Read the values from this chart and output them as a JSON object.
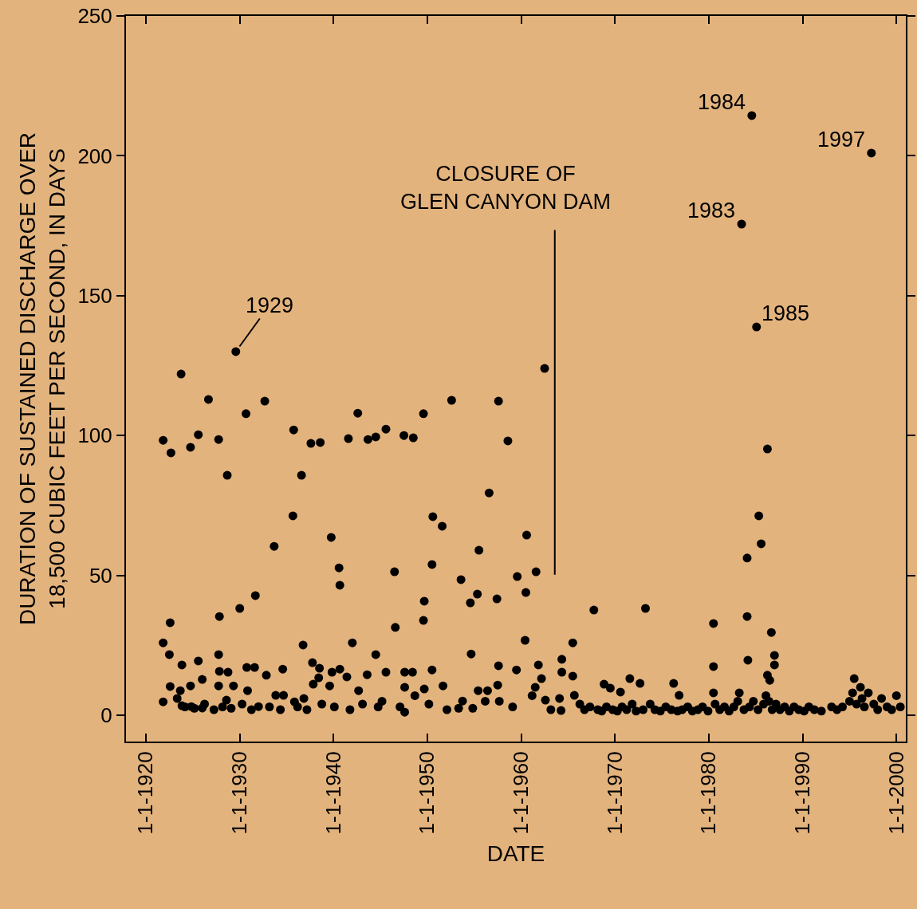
{
  "chart_data": {
    "type": "scatter",
    "xlabel": "DATE",
    "ylabel": "DURATION OF SUSTAINED DISCHARGE OVER\n18,500 CUBIC FEET PER SECOND, IN DAYS",
    "xlim": [
      "1917-11-15",
      "2001-01-01"
    ],
    "ylim": [
      -9.4,
      250
    ],
    "xticks": [
      {
        "value": "1920-01-01",
        "label": "1-1-1920"
      },
      {
        "value": "1930-01-01",
        "label": "1-1-1930"
      },
      {
        "value": "1940-01-01",
        "label": "1-1-1940"
      },
      {
        "value": "1950-01-01",
        "label": "1-1-1950"
      },
      {
        "value": "1960-01-01",
        "label": "1-1-1960"
      },
      {
        "value": "1970-01-01",
        "label": "1-1-1970"
      },
      {
        "value": "1980-01-01",
        "label": "1-1-1980"
      },
      {
        "value": "1990-01-01",
        "label": "1-1-1990"
      },
      {
        "value": "2000-01-01",
        "label": "1-1-2000"
      }
    ],
    "yticks": [
      0,
      50,
      100,
      150,
      200,
      250
    ],
    "grid": false,
    "marker": "circle",
    "color": "#000000",
    "x": [
      "1921-11",
      "1921-11",
      "1921-11",
      "1922-07",
      "1922-09",
      "1922-08",
      "1922-08",
      "1923-10",
      "1923-11",
      "1923-09",
      "1923-11",
      "1924-10",
      "1924-10",
      "1924-11",
      "1925-08",
      "1925-08",
      "1926-01",
      "1926-01",
      "1926-09",
      "1927-10",
      "1927-11",
      "1927-10",
      "1927-11",
      "1927-10",
      "1928-09",
      "1928-10",
      "1928-08",
      "1929-05",
      "1929-08",
      "1930-01",
      "1930-09",
      "1930-10",
      "1930-11",
      "1931-09",
      "1931-08",
      "1932-01",
      "1932-09",
      "1932-11",
      "1933-09",
      "1933-11",
      "1934-08",
      "1934-09",
      "1935-10",
      "1935-09",
      "1935-11",
      "1936-08",
      "1936-10",
      "1936-11",
      "1937-08",
      "1937-10",
      "1937-11",
      "1938-08",
      "1938-07",
      "1938-06",
      "1939-10",
      "1939-08",
      "1939-11",
      "1940-08",
      "1940-09",
      "1940-09",
      "1941-08",
      "1941-06",
      "1942-01",
      "1942-08",
      "1942-09",
      "1943-09",
      "1943-08",
      "1944-07",
      "1944-07",
      "1945-08",
      "1945-08",
      "1946-07",
      "1946-08",
      "1947-07",
      "1947-08",
      "1947-08",
      "1947-08",
      "1948-07",
      "1948-06",
      "1949-08",
      "1949-09",
      "1949-08",
      "1949-09",
      "1950-07",
      "1950-08",
      "1950-07",
      "1951-08",
      "1951-09",
      "1952-08",
      "1953-08",
      "1953-10",
      "1954-08",
      "1954-09",
      "1955-05",
      "1955-07",
      "1955-06",
      "1956-08",
      "1956-06",
      "1957-08",
      "1957-06",
      "1957-08",
      "1957-07",
      "1958-08",
      "1959-08",
      "1959-07",
      "1960-07",
      "1960-08",
      "1960-06",
      "1961-08",
      "1961-11",
      "1961-07",
      "1962-07",
      "1962-03",
      "1962-08",
      "1964-05",
      "1964-05",
      "1964-04",
      "1965-07",
      "1965-07",
      "1965-09",
      "1967-10",
      "1968-11",
      "1969-07",
      "1970-08",
      "1971-08",
      "1972-09",
      "1973-04",
      "1976-04",
      "1976-11",
      "1980-07",
      "1980-07",
      "1980-07",
      "1983-07",
      "1984-02",
      "1984-02",
      "1984-03",
      "1984-08",
      "1985-02",
      "1985-05",
      "1985-08",
      "1986-04",
      "1986-04",
      "1986-09",
      "1987-01",
      "1987-01",
      "1986-07",
      "1995-07",
      "1996-03",
      "1997-05",
      "1923-05",
      "1924-03",
      "1925-03",
      "1926-04",
      "1927-04",
      "1928-03",
      "1929-02",
      "1930-04",
      "1931-04",
      "1933-03",
      "1934-05",
      "1936-03",
      "1937-03",
      "1938-10",
      "1940-02",
      "1941-10",
      "1943-02",
      "1944-10",
      "1945-03",
      "1947-02",
      "1948-09",
      "1950-03",
      "1952-02",
      "1953-05",
      "1954-11",
      "1956-03",
      "1957-09",
      "1959-02",
      "1961-03",
      "1963-03",
      "1964-02",
      "1966-04",
      "1966-10",
      "1967-05",
      "1968-03",
      "1968-08",
      "1969-02",
      "1969-10",
      "1970-04",
      "1970-10",
      "1971-04",
      "1971-11",
      "1972-04",
      "1973-01",
      "1973-10",
      "1974-04",
      "1974-11",
      "1975-06",
      "1976-01",
      "1976-09",
      "1977-03",
      "1977-10",
      "1978-04",
      "1978-11",
      "1979-05",
      "1979-12",
      "1980-09",
      "1981-03",
      "1981-09",
      "1982-03",
      "1982-09",
      "1983-02",
      "1983-04",
      "1983-10",
      "1984-05",
      "1984-10",
      "1985-04",
      "1985-11",
      "1986-02",
      "1986-06",
      "1986-10",
      "1987-03",
      "1987-08",
      "1988-02",
      "1988-08",
      "1989-02",
      "1989-08",
      "1990-03",
      "1990-09",
      "1991-04",
      "1992-01",
      "1993-02",
      "1993-09",
      "1994-04",
      "1995-01",
      "1995-05",
      "1995-10",
      "1996-05",
      "1996-08",
      "1997-01",
      "1997-08",
      "1998-01",
      "1998-06",
      "1999-01",
      "1999-07",
      "2000-01",
      "2000-06"
    ],
    "values": [
      98.3,
      25.9,
      4.8,
      21.7,
      93.8,
      33.1,
      10.3,
      122,
      18.0,
      8.8,
      3.4,
      95.8,
      10.5,
      3.1,
      100.3,
      19.4,
      12.8,
      2.6,
      112.9,
      98.6,
      35.3,
      21.7,
      15.7,
      10.5,
      85.8,
      15.4,
      5.4,
      10.5,
      130,
      38.2,
      107.8,
      17.1,
      8.8,
      42.8,
      17.1,
      3.1,
      112.3,
      14.3,
      60.4,
      7.1,
      16.5,
      7.1,
      102,
      71.3,
      4.8,
      85.8,
      25.1,
      6.0,
      97.2,
      18.8,
      11.1,
      97.5,
      16.8,
      13.4,
      63.6,
      10.5,
      15.4,
      52.7,
      46.5,
      16.5,
      98.9,
      13.7,
      25.9,
      108,
      8.8,
      98.6,
      14.5,
      99.5,
      21.7,
      102.3,
      15.4,
      51.3,
      31.4,
      100,
      15.4,
      10,
      1.1,
      99.2,
      15.4,
      107.8,
      40.8,
      33.9,
      9.4,
      53.9,
      71.0,
      16.2,
      67.6,
      10.5,
      112.6,
      48.5,
      5.1,
      40.2,
      21.9,
      43.3,
      59.0,
      8.8,
      79.5,
      8.8,
      112.3,
      41.6,
      17.7,
      10.8,
      98.1,
      49.6,
      16.2,
      43.9,
      64.4,
      26.8,
      51.3,
      18.0,
      10,
      124,
      13.1,
      5.4,
      20.0,
      15.4,
      1.7,
      25.9,
      14.0,
      7.1,
      37.6,
      11.1,
      9.7,
      8.3,
      13.1,
      11.4,
      38.2,
      11.4,
      7.1,
      32.8,
      17.4,
      8.0,
      175.6,
      56.2,
      35.3,
      19.7,
      214.4,
      138.8,
      71.3,
      61.3,
      95.2,
      14.3,
      29.6,
      21.4,
      18.0,
      12.5,
      13.1,
      10,
      201,
      6,
      3,
      2.5,
      4,
      2,
      3,
      2.5,
      4,
      2,
      3,
      2,
      3,
      2,
      4,
      3,
      2,
      4,
      3,
      5,
      3,
      7,
      4,
      2,
      2.5,
      2.5,
      5,
      5,
      3,
      7,
      2,
      6,
      4,
      2,
      3,
      2,
      1.5,
      3,
      2,
      1.5,
      3,
      2,
      4,
      1.5,
      2,
      4,
      2,
      1.5,
      3,
      2,
      1.5,
      2,
      3,
      1.5,
      2,
      3,
      1.5,
      4,
      2,
      3,
      1.5,
      3,
      5,
      8,
      2,
      3,
      5,
      2,
      4,
      7,
      5,
      2,
      4,
      2,
      3,
      1.5,
      3,
      2,
      1.5,
      3,
      2,
      1.5,
      3,
      2,
      3,
      5,
      8,
      4,
      6,
      3,
      8,
      4,
      2,
      6,
      3,
      2,
      7,
      3
    ],
    "ref_lines": [
      {
        "axis": "x",
        "value": "1963-08",
        "label": "CLOSURE OF\nGLEN CANYON DAM",
        "color": "#000000"
      }
    ],
    "annotations": [
      {
        "text": "1929",
        "x": "1929-08",
        "y": 130
      },
      {
        "text": "1984",
        "x": "1984-08",
        "y": 214.4
      },
      {
        "text": "1983",
        "x": "1983-07",
        "y": 175.6
      },
      {
        "text": "1985",
        "x": "1985-02",
        "y": 138.8
      },
      {
        "text": "1997",
        "x": "1997-05",
        "y": 201
      }
    ]
  }
}
